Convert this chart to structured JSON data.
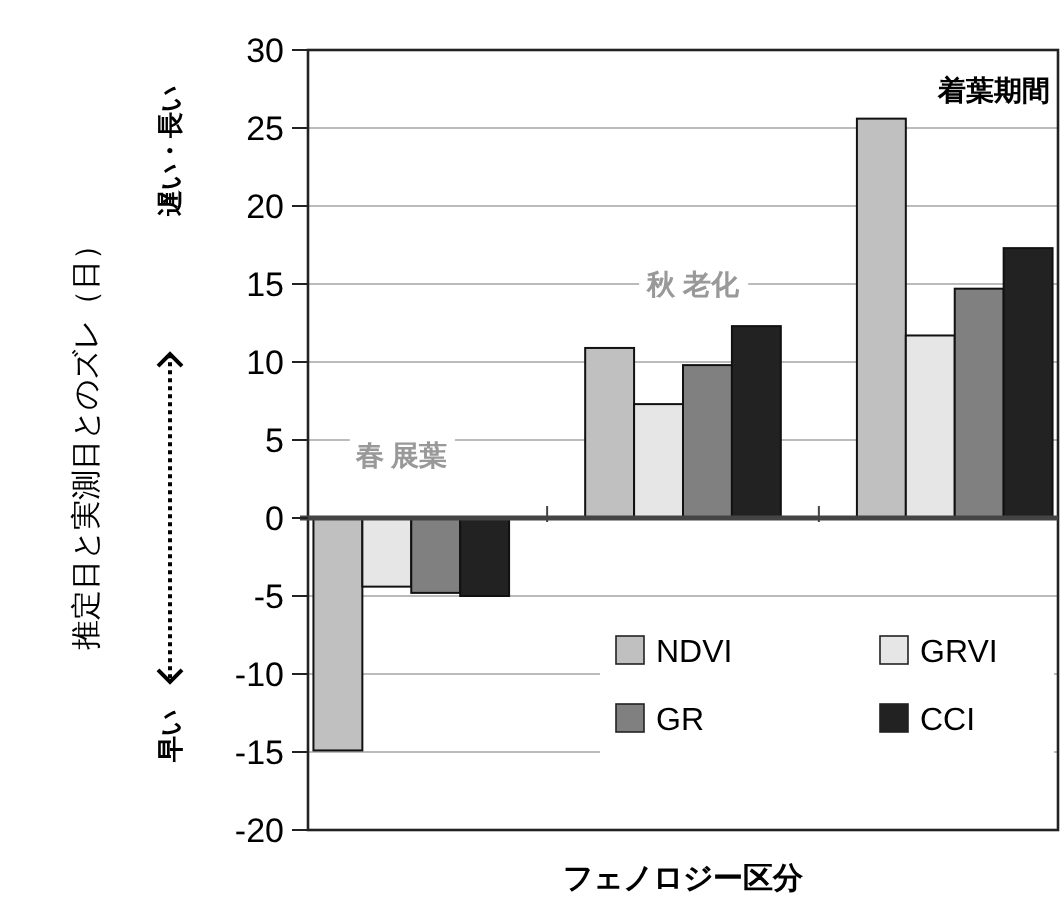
{
  "chart_data": {
    "type": "bar",
    "xlabel": "フェノロジー区分",
    "ylabel": "推定日と実測日とのズレ（日）",
    "categories": [
      "春 展葉",
      "秋 老化",
      "着葉期間"
    ],
    "series": [
      {
        "name": "NDVI",
        "color": "#c0c0c0",
        "values": [
          -14.9,
          10.9,
          25.6
        ]
      },
      {
        "name": "GRVI",
        "color": "#e6e6e6",
        "values": [
          -4.4,
          7.3,
          11.7
        ]
      },
      {
        "name": "GR",
        "color": "#808080",
        "values": [
          -4.8,
          9.8,
          14.7
        ]
      },
      {
        "name": "CCI",
        "color": "#222222",
        "values": [
          -5.0,
          12.3,
          17.3
        ]
      }
    ],
    "ylim": [
      -20,
      30
    ],
    "yticks": [
      -20,
      -15,
      -10,
      -5,
      0,
      5,
      10,
      15,
      20,
      25,
      30
    ],
    "grid": "y",
    "legend": "bottom right",
    "annotations": [
      "遅い・長い",
      "早い"
    ]
  }
}
